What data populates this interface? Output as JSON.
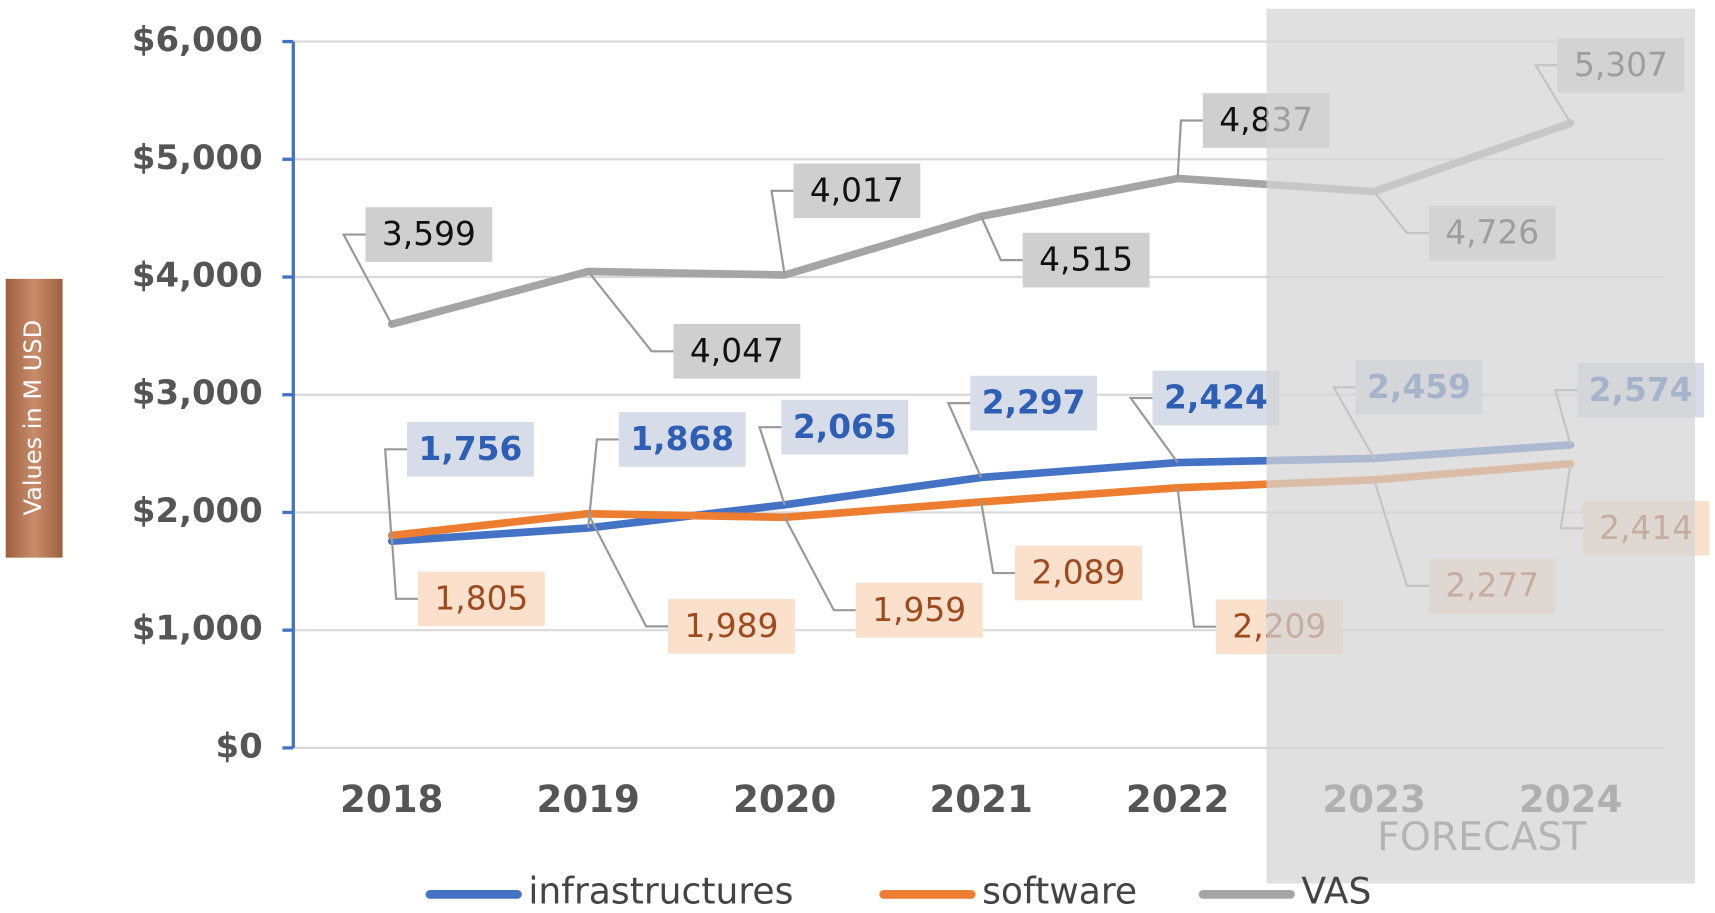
{
  "chart_data": {
    "type": "line",
    "y_axis_label": "Values in M USD",
    "annotation": "FORECAST",
    "categories": [
      "2018",
      "2019",
      "2020",
      "2021",
      "2022",
      "2023",
      "2024"
    ],
    "ylim": [
      0,
      6000
    ],
    "yticks": [
      {
        "value": 0,
        "label": "$0"
      },
      {
        "value": 1000,
        "label": "$1,000"
      },
      {
        "value": 2000,
        "label": "$2,000"
      },
      {
        "value": 3000,
        "label": "$3,000"
      },
      {
        "value": 4000,
        "label": "$4,000"
      },
      {
        "value": 5000,
        "label": "$5,000"
      },
      {
        "value": 6000,
        "label": "$6,000"
      }
    ],
    "grid": true,
    "legend": "bottom",
    "series": [
      {
        "name": "infrastructures",
        "color": "#4472c4",
        "values": [
          1756,
          1868,
          2065,
          2297,
          2424,
          2459,
          2574
        ],
        "value_labels": [
          "1,756",
          "1,868",
          "2,065",
          "2,297",
          "2,424",
          "2,459",
          "2,574"
        ]
      },
      {
        "name": "software",
        "color": "#ed7d31",
        "values": [
          1805,
          1989,
          1959,
          2089,
          2209,
          2277,
          2414
        ],
        "value_labels": [
          "1,805",
          "1,989",
          "1,959",
          "2,089",
          "2,209",
          "2,277",
          "2,414"
        ]
      },
      {
        "name": "VAS",
        "color": "#a5a5a5",
        "values": [
          3599,
          4047,
          4017,
          4515,
          4837,
          4726,
          5307
        ],
        "value_labels": [
          "3,599",
          "4,047",
          "4,017",
          "4,515",
          "4,837",
          "4,726",
          "5,307"
        ]
      }
    ]
  }
}
